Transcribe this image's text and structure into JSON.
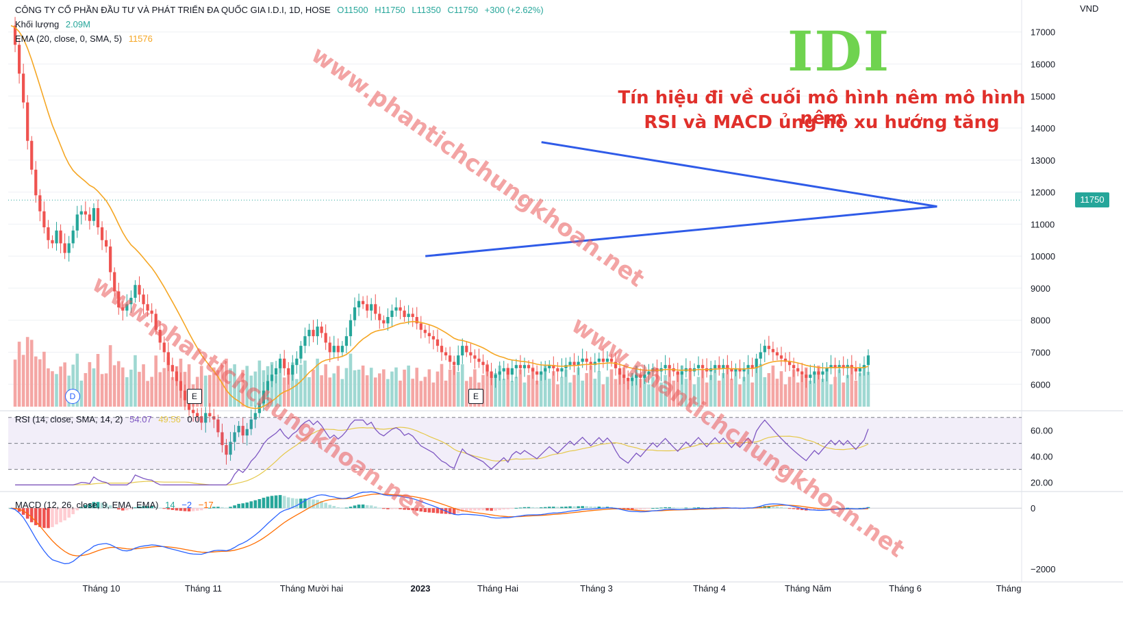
{
  "header": {
    "symbol_line": "CÔNG TY CỔ PHẦN ĐẦU TƯ VÀ PHÁT TRIỂN ĐA QUỐC GIA I.D.I, 1D, HOSE",
    "open": "O11500",
    "high": "H11750",
    "low": "L11350",
    "close": "C11750",
    "change": "+300 (+2.62%)",
    "volume_label": "Khối lượng",
    "volume_value": "2.09M",
    "ema_label": "EMA (20, close, 0, SMA, 5)",
    "ema_value": "11576"
  },
  "currency": "VND",
  "last_price_tag": "11750",
  "ticker_title": "IDI",
  "note_line1": "Tín hiệu đi về cuối mô hình nêm mô hình nêm",
  "note_line2": "RSI và MACD ủng hộ xu hướng tăng",
  "watermark_text": "www.phantichchungkhoan.net",
  "events": {
    "dividend": "D",
    "earnings": "E"
  },
  "rsi_header": {
    "label": "RSI (14, close, SMA, 14, 2)",
    "value": "54.07",
    "ma": "49.56",
    "extra": "0 0"
  },
  "macd_header": {
    "label": "MACD (12, 26, close, 9, EMA, EMA)",
    "hist": "14",
    "macd": "−2",
    "signal": "−17"
  },
  "colors": {
    "up": "#26a69a",
    "down": "#ef5350",
    "ema": "#f5a623",
    "wedge": "#2f5be8",
    "rsi": "#7e57c2",
    "rsi_ma": "#e5c84a",
    "macd": "#2962ff",
    "signal": "#ff6d00"
  },
  "chart_data": {
    "type": "candlestick",
    "price_axis": {
      "ticks": [
        6000,
        7000,
        8000,
        9000,
        10000,
        11000,
        12000,
        13000,
        14000,
        15000,
        16000,
        17000
      ],
      "range": [
        5300,
        17400
      ]
    },
    "rsi_axis": {
      "ticks": [
        "60.00",
        "40.00",
        "20.00"
      ],
      "range": [
        15,
        72
      ],
      "band": [
        30,
        70
      ],
      "mid": 50
    },
    "macd_axis": {
      "ticks": [
        "0",
        "−2000"
      ],
      "range": [
        -2200,
        500
      ]
    },
    "x_labels": [
      "Tháng 10",
      "Tháng 11",
      "Tháng Mười hai",
      "2023",
      "Tháng Hai",
      "Tháng 3",
      "Tháng 4",
      "Tháng Năm",
      "Tháng 6",
      "Tháng"
    ],
    "wedge": {
      "upper": [
        [
          0.62,
          13560
        ],
        [
          1.08,
          11550
        ]
      ],
      "lower": [
        [
          0.485,
          10000
        ],
        [
          1.08,
          11550
        ]
      ]
    },
    "close_start": 17200,
    "close_change": [
      -600,
      -900,
      -900,
      -1200,
      -900,
      -800,
      -500,
      -500,
      -400,
      -100,
      400,
      -400,
      -300,
      300,
      400,
      500,
      100,
      -100,
      -200,
      400,
      -600,
      -400,
      -200,
      -800,
      -600,
      -500,
      -100,
      200,
      200,
      400,
      -300,
      -300,
      -200,
      -100,
      -500,
      -400,
      -300,
      -400,
      -200,
      -300,
      -300,
      -300,
      -300,
      -100,
      -100,
      -200,
      300,
      -100,
      -100,
      -400,
      -400,
      -300,
      400,
      300,
      200,
      -300,
      200,
      300,
      200,
      300,
      400,
      300,
      200,
      200,
      300,
      -300,
      -200,
      300,
      200,
      400,
      300,
      200,
      -200,
      300,
      -200,
      -300,
      -300,
      200,
      -200,
      200,
      300,
      500,
      400,
      200,
      -100,
      -200,
      200,
      -300,
      -200,
      -100,
      200,
      200,
      100,
      -100,
      -200,
      100,
      -100,
      -200,
      -200,
      -100,
      -100,
      -100,
      -200,
      -200,
      -100,
      -200,
      -100,
      300,
      300,
      -200,
      -100,
      -100,
      -100,
      -100,
      -200,
      -200,
      100,
      100,
      100,
      -200,
      200,
      100,
      -100,
      100,
      -100,
      -100,
      -100,
      100,
      100,
      100,
      -100,
      -100,
      100,
      100,
      100,
      -100,
      100,
      100,
      -100,
      -100,
      100,
      100,
      -100,
      100,
      -100,
      -200,
      -200,
      -100,
      -100,
      100,
      100,
      -100,
      100,
      100,
      100,
      -100,
      100,
      100,
      -100,
      -100,
      -100,
      100,
      100,
      -100,
      100,
      100,
      -100,
      -100,
      100,
      100,
      -100,
      100,
      -100,
      -100,
      100,
      -100,
      100,
      100,
      -100,
      300,
      200,
      200,
      -100,
      -100,
      -100,
      -100,
      -100,
      -100,
      -100,
      -100,
      -100,
      -100,
      100,
      100,
      -100,
      100,
      100,
      100,
      -100,
      100,
      -100,
      100,
      -100,
      -100,
      100,
      100,
      300
    ],
    "rsi_final": 54.07,
    "ema_final": 11576
  }
}
